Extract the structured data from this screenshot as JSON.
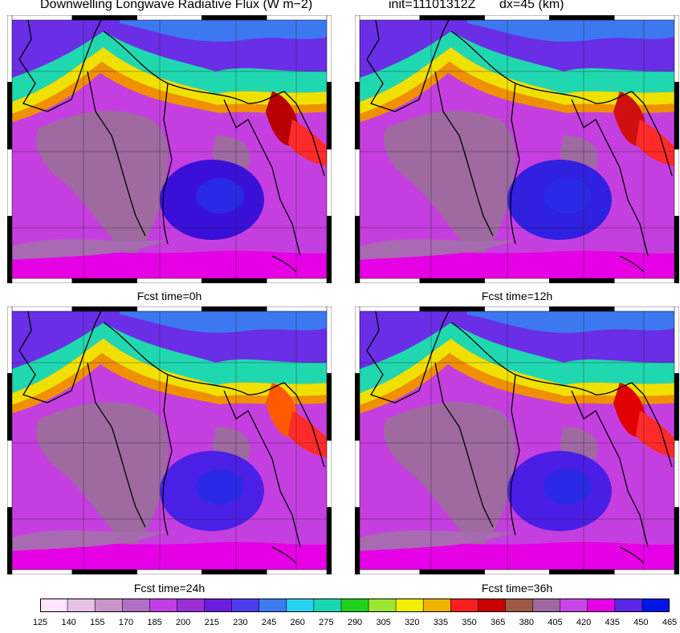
{
  "title": {
    "main": "Downwelling Longwave Radiative Flux (W m−2)",
    "init": "init=11101312Z",
    "dx": "dx=45 (km)"
  },
  "panels": [
    {
      "caption": "Fcst time=0h",
      "hot_spot": "#b80000",
      "low_blob": "#3a10d8"
    },
    {
      "caption": "Fcst time=12h",
      "hot_spot": "#d01010",
      "low_blob": "#3020e0"
    },
    {
      "caption": "Fcst time=24h",
      "hot_spot": "#ff5a00",
      "low_blob": "#4b20e6"
    },
    {
      "caption": "Fcst time=36h",
      "hot_spot": "#e00000",
      "low_blob": "#4a1ee4"
    }
  ],
  "colorbar": {
    "ticks": [
      "125",
      "140",
      "155",
      "170",
      "185",
      "200",
      "215",
      "230",
      "245",
      "260",
      "275",
      "290",
      "305",
      "320",
      "335",
      "350",
      "365",
      "380",
      "405",
      "420",
      "435",
      "450",
      "465"
    ],
    "colors": [
      "#ffe4ff",
      "#e6c2e6",
      "#c896c8",
      "#b070c8",
      "#c040e6",
      "#9b30d8",
      "#6a1ee0",
      "#4c3cf0",
      "#3c7cf0",
      "#28d2f0",
      "#18d8b4",
      "#1ed21e",
      "#9ce632",
      "#f0f000",
      "#f0b400",
      "#ff1e1e",
      "#c80000",
      "#9e5a46",
      "#a068a0",
      "#c846e6",
      "#e600e6",
      "#5a28e6",
      "#0014e6"
    ]
  }
}
